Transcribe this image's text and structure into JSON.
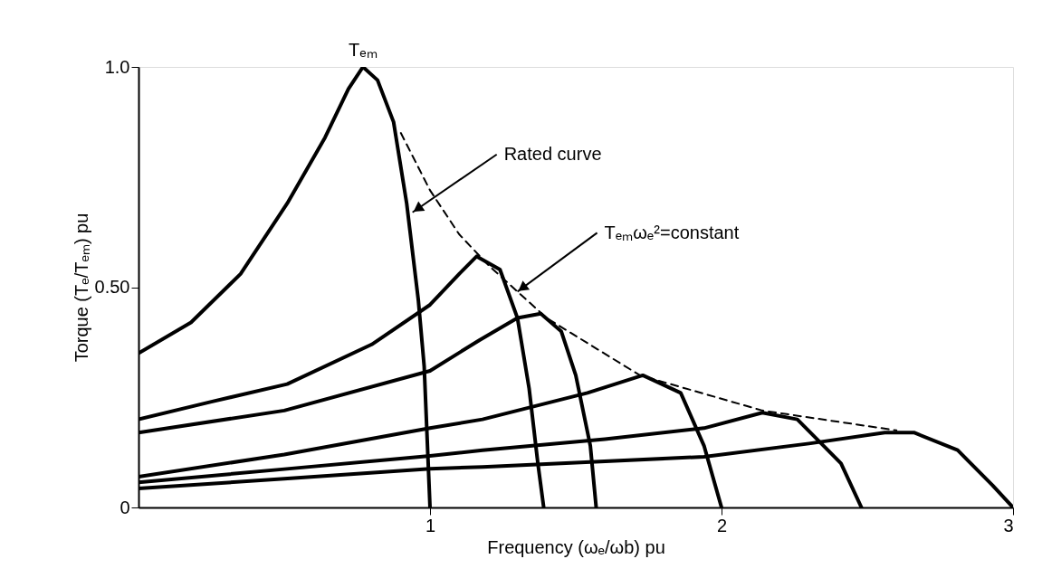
{
  "chart_data": {
    "type": "line",
    "xlabel": "Frequency (ωₑ/ωb) pu",
    "ylabel": "Torque (Tₑ/Tₑₘ) pu",
    "xlim": [
      0,
      3
    ],
    "ylim": [
      0,
      1
    ],
    "xticks": [
      1,
      2,
      3
    ],
    "yticks": [
      0,
      {
        "value": 0.5,
        "label": "0.50"
      },
      {
        "value": 1,
        "label": "1.0"
      }
    ],
    "grid": false,
    "marker": "none",
    "series": [
      {
        "color": "#000000",
        "line_style": "solid",
        "x": [
          0,
          0.18,
          0.35,
          0.51,
          0.64,
          0.72,
          0.77,
          0.82,
          0.875,
          0.92,
          0.96,
          0.98,
          1.0
        ],
        "values": [
          0.35,
          0.42,
          0.53,
          0.69,
          0.84,
          0.95,
          1.0,
          0.97,
          0.875,
          0.69,
          0.47,
          0.32,
          0
        ]
      },
      {
        "color": "#000000",
        "line_style": "solid",
        "x": [
          0,
          0.25,
          0.51,
          0.8,
          1.0,
          1.1,
          1.16,
          1.24,
          1.3,
          1.34,
          1.37,
          1.39
        ],
        "values": [
          0.2,
          0.24,
          0.28,
          0.37,
          0.46,
          0.53,
          0.57,
          0.54,
          0.43,
          0.27,
          0.1,
          0
        ]
      },
      {
        "color": "#000000",
        "line_style": "solid",
        "x": [
          0,
          0.5,
          1.0,
          1.17,
          1.3,
          1.38,
          1.45,
          1.5,
          1.55,
          1.57
        ],
        "values": [
          0.17,
          0.22,
          0.31,
          0.38,
          0.43,
          0.44,
          0.4,
          0.3,
          0.14,
          0
        ]
      },
      {
        "color": "#000000",
        "line_style": "solid",
        "x": [
          0,
          0.5,
          1.0,
          1.18,
          1.54,
          1.73,
          1.86,
          1.94,
          2.0
        ],
        "values": [
          0.07,
          0.12,
          0.18,
          0.2,
          0.26,
          0.3,
          0.26,
          0.14,
          0
        ]
      },
      {
        "color": "#000000",
        "line_style": "solid",
        "x": [
          0,
          0.5,
          1.0,
          1.18,
          1.6,
          1.94,
          2.14,
          2.26,
          2.41,
          2.48
        ],
        "values": [
          0.057,
          0.087,
          0.117,
          0.13,
          0.155,
          0.18,
          0.215,
          0.2,
          0.1,
          0
        ]
      },
      {
        "color": "#000000",
        "line_style": "solid",
        "x": [
          0,
          0.5,
          1.0,
          1.18,
          1.94,
          2.3,
          2.56,
          2.66,
          2.81,
          2.93,
          3.0
        ],
        "values": [
          0.043,
          0.065,
          0.088,
          0.092,
          0.115,
          0.145,
          0.17,
          0.17,
          0.13,
          0.05,
          0
        ]
      },
      {
        "color": "#000000",
        "line_style": "dashed",
        "x": [
          0.9,
          1.0,
          1.1,
          1.2,
          1.4,
          1.72,
          2.14,
          2.6
        ],
        "values": [
          0.85,
          0.72,
          0.62,
          0.55,
          0.43,
          0.3,
          0.22,
          0.175
        ]
      }
    ],
    "annotations": [
      {
        "text": "Tₑₘ",
        "x": 0.77,
        "y": 1.0
      },
      {
        "text": "Rated curve",
        "x": 0.94,
        "y": 0.67
      },
      {
        "text": "Tₑₘωₑ²=constant",
        "x": 1.3,
        "y": 0.49
      }
    ]
  }
}
